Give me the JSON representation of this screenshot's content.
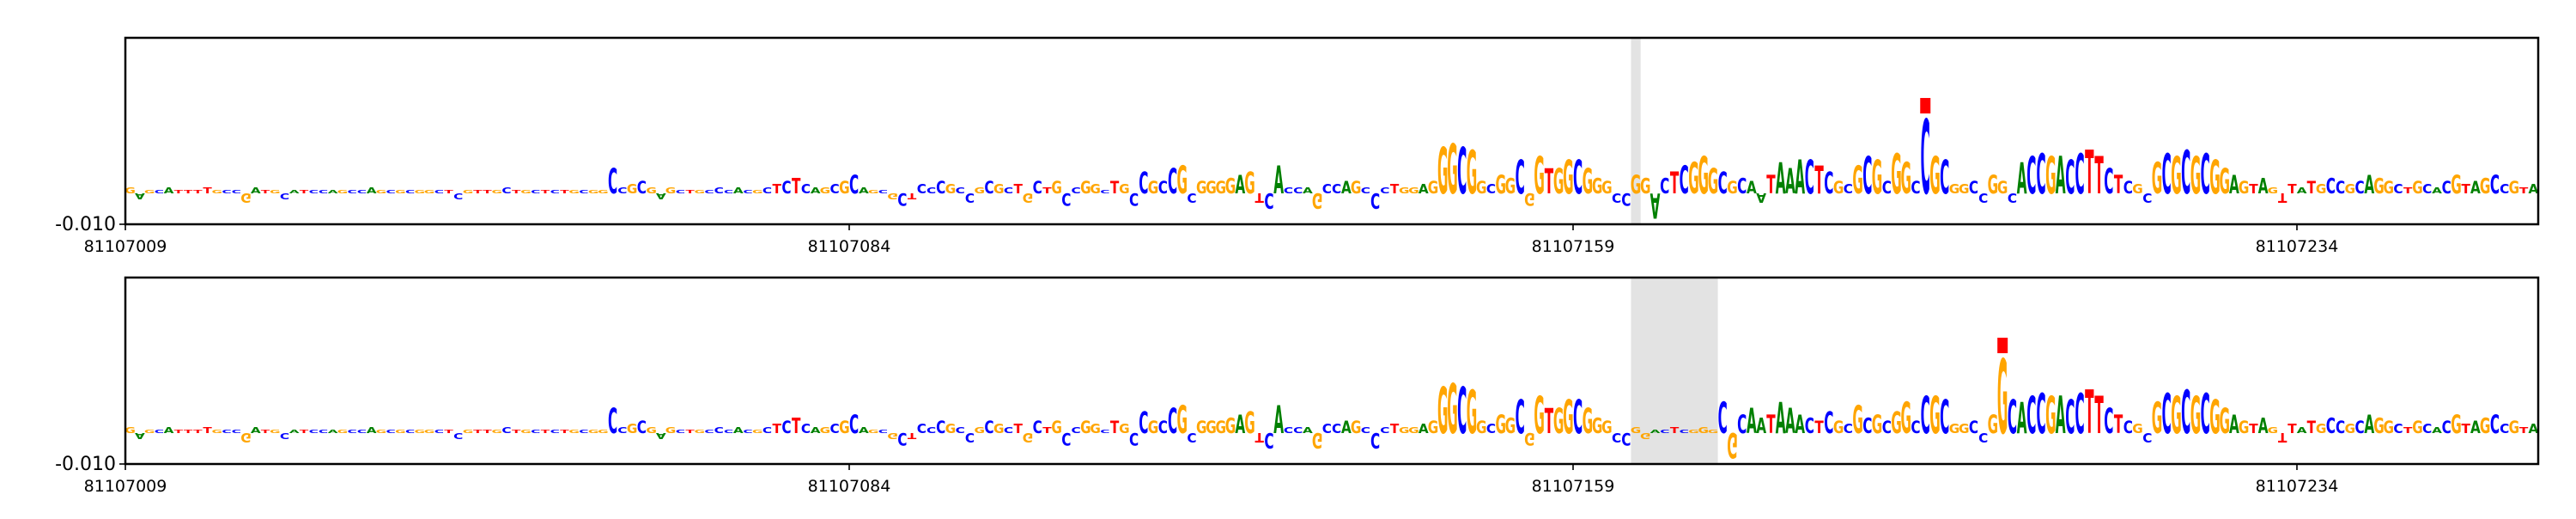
{
  "chart_data": [
    {
      "type": "logo",
      "sequence": "GAGCATTTTGCCGATGCATCCAGCCAGCGCGGCTCGTTGCTGCTCTGCGGCCGCGAGCTGCCCACGCTCTCAGCGCAGCGCTCCCGCCGCGCTGCTGCCGGCTGCCGCCGCGGGGAGTCACCAGCCAGCCCTGGAGGGCGGCGGCGGTGGCGGGCCGGACTCGGGCGCAATAAACTCGCGCGCGGCCGCGGCCGGCACCGACCTTCTCGCGCGCGCGGAGTAGTTATGCCGCAGGCTGCACGTAGCCGTA",
      "values": [
        0.002,
        -0.002,
        0.001,
        0.001,
        0.002,
        0.001,
        0.001,
        0.001,
        0.002,
        0.001,
        0.001,
        0.001,
        -0.003,
        0.002,
        0.001,
        0.001,
        -0.002,
        0.001,
        0.001,
        0.001,
        0.001,
        0.001,
        0.001,
        0.001,
        0.001,
        0.002,
        0.001,
        0.001,
        0.001,
        0.001,
        0.001,
        0.001,
        0.001,
        0.001,
        -0.002,
        0.001,
        0.001,
        0.001,
        0.001,
        0.002,
        0.001,
        0.001,
        0.001,
        0.001,
        0.001,
        0.001,
        0.001,
        0.001,
        0.001,
        0.001,
        0.008,
        0.002,
        0.003,
        0.004,
        0.002,
        -0.002,
        0.002,
        0.001,
        0.001,
        0.001,
        0.001,
        0.002,
        0.001,
        0.002,
        0.001,
        0.001,
        0.002,
        0.003,
        0.004,
        0.005,
        0.003,
        0.002,
        0.002,
        0.003,
        0.004,
        0.006,
        0.002,
        0.001,
        0.001,
        -0.002,
        -0.004,
        -0.002,
        0.003,
        0.002,
        0.004,
        0.003,
        0.002,
        -0.003,
        0.002,
        0.004,
        0.003,
        0.002,
        0.003,
        -0.003,
        0.004,
        0.002,
        0.004,
        -0.004,
        0.002,
        0.004,
        0.003,
        0.001,
        0.004,
        0.003,
        -0.004,
        0.007,
        0.004,
        0.004,
        0.008,
        0.009,
        -0.003,
        0.004,
        0.004,
        0.004,
        0.005,
        0.006,
        0.007,
        -0.003,
        -0.005,
        0.009,
        0.002,
        0.002,
        0.002,
        -0.005,
        0.003,
        0.003,
        0.004,
        0.004,
        0.002,
        -0.005,
        0.002,
        0.003,
        0.002,
        0.002,
        0.003,
        0.004,
        0.015,
        0.016,
        0.015,
        0.014,
        0.004,
        0.003,
        0.006,
        0.005,
        0.011,
        -0.004,
        0.012,
        0.008,
        0.008,
        0.011,
        0.011,
        0.008,
        0.005,
        0.004,
        -0.003,
        -0.004,
        0.006,
        0.005,
        -0.008,
        0.005,
        0.007,
        0.009,
        0.01,
        0.012,
        0.008,
        0.007,
        0.004,
        0.005,
        0.004,
        -0.003,
        0.006,
        0.01,
        0.008,
        0.011,
        0.011,
        0.009,
        0.007,
        0.004,
        0.003,
        0.009,
        0.012,
        0.011,
        0.004,
        0.013,
        0.01,
        0.004,
        0.024,
        0.012,
        0.011,
        0.003,
        0.003,
        0.004,
        -0.003,
        0.006,
        0.004,
        -0.003,
        0.01,
        0.012,
        0.013,
        0.012,
        0.012,
        0.011,
        0.013,
        0.014,
        0.012,
        0.008,
        0.006,
        0.004,
        0.003,
        -0.003,
        0.01,
        0.013,
        0.012,
        0.014,
        0.012,
        0.013,
        0.011,
        0.008,
        0.006,
        0.004,
        0.003,
        0.005,
        0.002,
        -0.003,
        0.003,
        0.002,
        0.004,
        0.003,
        0.005,
        0.004,
        0.003,
        0.004,
        0.006,
        0.005,
        0.004,
        0.003,
        0.002,
        0.004,
        0.003,
        0.002,
        0.004,
        0.006,
        0.003,
        0.004,
        0.005,
        0.006,
        0.003,
        0.004,
        0.002,
        0.003
      ],
      "colors": {
        "A": "#008000",
        "C": "#0000ff",
        "G": "#ffa500",
        "T": "#ff0000"
      },
      "highlight": [
        81107165,
        81107166
      ],
      "marker": 81107195,
      "marker_color": "#ff0000",
      "xlim": [
        81107009,
        81107259
      ],
      "xticks": [
        81107009,
        81107084,
        81107159,
        81107234
      ],
      "ylim": [
        -0.01,
        0.05
      ],
      "yticks": [
        {
          "value": -0.01,
          "label": "-0.010"
        }
      ]
    },
    {
      "type": "logo",
      "sequence": "GAGCATTTTGCCGATGCATCCAGCCAGCGCGGCTCGTTGCTGCTCTGCGGCCGCGAGCTGCCCACGCTCTCAGCGCAGCGCTCCCGCCGCGCTGCTGCCGGCTGCCGCCGCGGGGAGTCACCAGCCAGCCCTGGAGGGCGGCGGCGGTGGCGGGCCGGACTCGGGCGCAATAAACTCGCGCGCGGCCGCGGCCGGCACCGACCTTCTCGCGCGCGCGGAGTAGTTATGCCGCAGGCTGCACGTAGCCGTA",
      "values": [
        0.002,
        -0.002,
        0.001,
        0.001,
        0.002,
        0.001,
        0.001,
        0.001,
        0.002,
        0.001,
        0.001,
        0.001,
        -0.003,
        0.002,
        0.001,
        0.001,
        -0.002,
        0.001,
        0.001,
        0.001,
        0.001,
        0.001,
        0.001,
        0.001,
        0.001,
        0.002,
        0.001,
        0.001,
        0.001,
        0.001,
        0.001,
        0.001,
        0.001,
        0.001,
        -0.002,
        0.001,
        0.001,
        0.001,
        0.001,
        0.002,
        0.001,
        0.001,
        0.001,
        0.001,
        0.001,
        0.001,
        0.001,
        0.001,
        0.001,
        0.001,
        0.008,
        0.002,
        0.003,
        0.004,
        0.002,
        -0.002,
        0.002,
        0.001,
        0.001,
        0.001,
        0.001,
        0.002,
        0.001,
        0.002,
        0.001,
        0.001,
        0.002,
        0.003,
        0.004,
        0.005,
        0.003,
        0.002,
        0.002,
        0.003,
        0.004,
        0.006,
        0.002,
        0.001,
        0.001,
        -0.002,
        -0.004,
        -0.002,
        0.003,
        0.002,
        0.004,
        0.003,
        0.002,
        -0.003,
        0.002,
        0.004,
        0.003,
        0.002,
        0.003,
        -0.003,
        0.004,
        0.002,
        0.004,
        -0.004,
        0.002,
        0.004,
        0.003,
        0.001,
        0.004,
        0.003,
        -0.004,
        0.007,
        0.004,
        0.004,
        0.008,
        0.009,
        -0.003,
        0.004,
        0.004,
        0.004,
        0.005,
        0.006,
        0.007,
        -0.003,
        -0.005,
        0.009,
        0.002,
        0.002,
        0.002,
        -0.005,
        0.003,
        0.003,
        0.004,
        0.004,
        0.002,
        -0.005,
        0.002,
        0.003,
        0.002,
        0.002,
        0.003,
        0.004,
        0.015,
        0.016,
        0.015,
        0.014,
        0.004,
        0.003,
        0.006,
        0.005,
        0.011,
        -0.004,
        0.012,
        0.008,
        0.008,
        0.011,
        0.011,
        0.008,
        0.005,
        0.004,
        -0.003,
        -0.004,
        0.002,
        -0.002,
        0.001,
        0.001,
        0.002,
        0.001,
        0.001,
        0.002,
        0.001,
        0.01,
        -0.008,
        0.006,
        0.008,
        0.005,
        0.006,
        0.01,
        0.008,
        0.006,
        0.005,
        0.004,
        0.007,
        0.004,
        0.003,
        0.009,
        0.005,
        0.006,
        0.004,
        0.007,
        0.01,
        0.004,
        0.012,
        0.012,
        0.011,
        0.003,
        0.003,
        0.004,
        -0.003,
        0.006,
        0.024,
        0.011,
        0.01,
        0.012,
        0.013,
        0.012,
        0.012,
        0.011,
        0.013,
        0.014,
        0.012,
        0.008,
        0.006,
        0.004,
        0.003,
        -0.003,
        0.01,
        0.013,
        0.012,
        0.014,
        0.012,
        0.013,
        0.011,
        0.008,
        0.006,
        0.004,
        0.003,
        0.005,
        0.002,
        -0.003,
        0.003,
        0.002,
        0.004,
        0.003,
        0.005,
        0.004,
        0.003,
        0.004,
        0.006,
        0.005,
        0.004,
        0.003,
        0.002,
        0.004,
        0.003,
        0.002,
        0.004,
        0.006,
        0.003,
        0.004,
        0.005,
        0.006,
        0.003,
        0.004,
        0.002,
        0.003
      ],
      "colors": {
        "A": "#008000",
        "C": "#0000ff",
        "G": "#ffa500",
        "T": "#ff0000"
      },
      "highlight": [
        81107165,
        81107174
      ],
      "marker": 81107203,
      "marker_color": "#ff0000",
      "xlim": [
        81107009,
        81107259
      ],
      "xticks": [
        81107009,
        81107084,
        81107159,
        81107234
      ],
      "ylim": [
        -0.01,
        0.05
      ],
      "yticks": [
        {
          "value": -0.01,
          "label": "-0.010"
        }
      ]
    }
  ]
}
